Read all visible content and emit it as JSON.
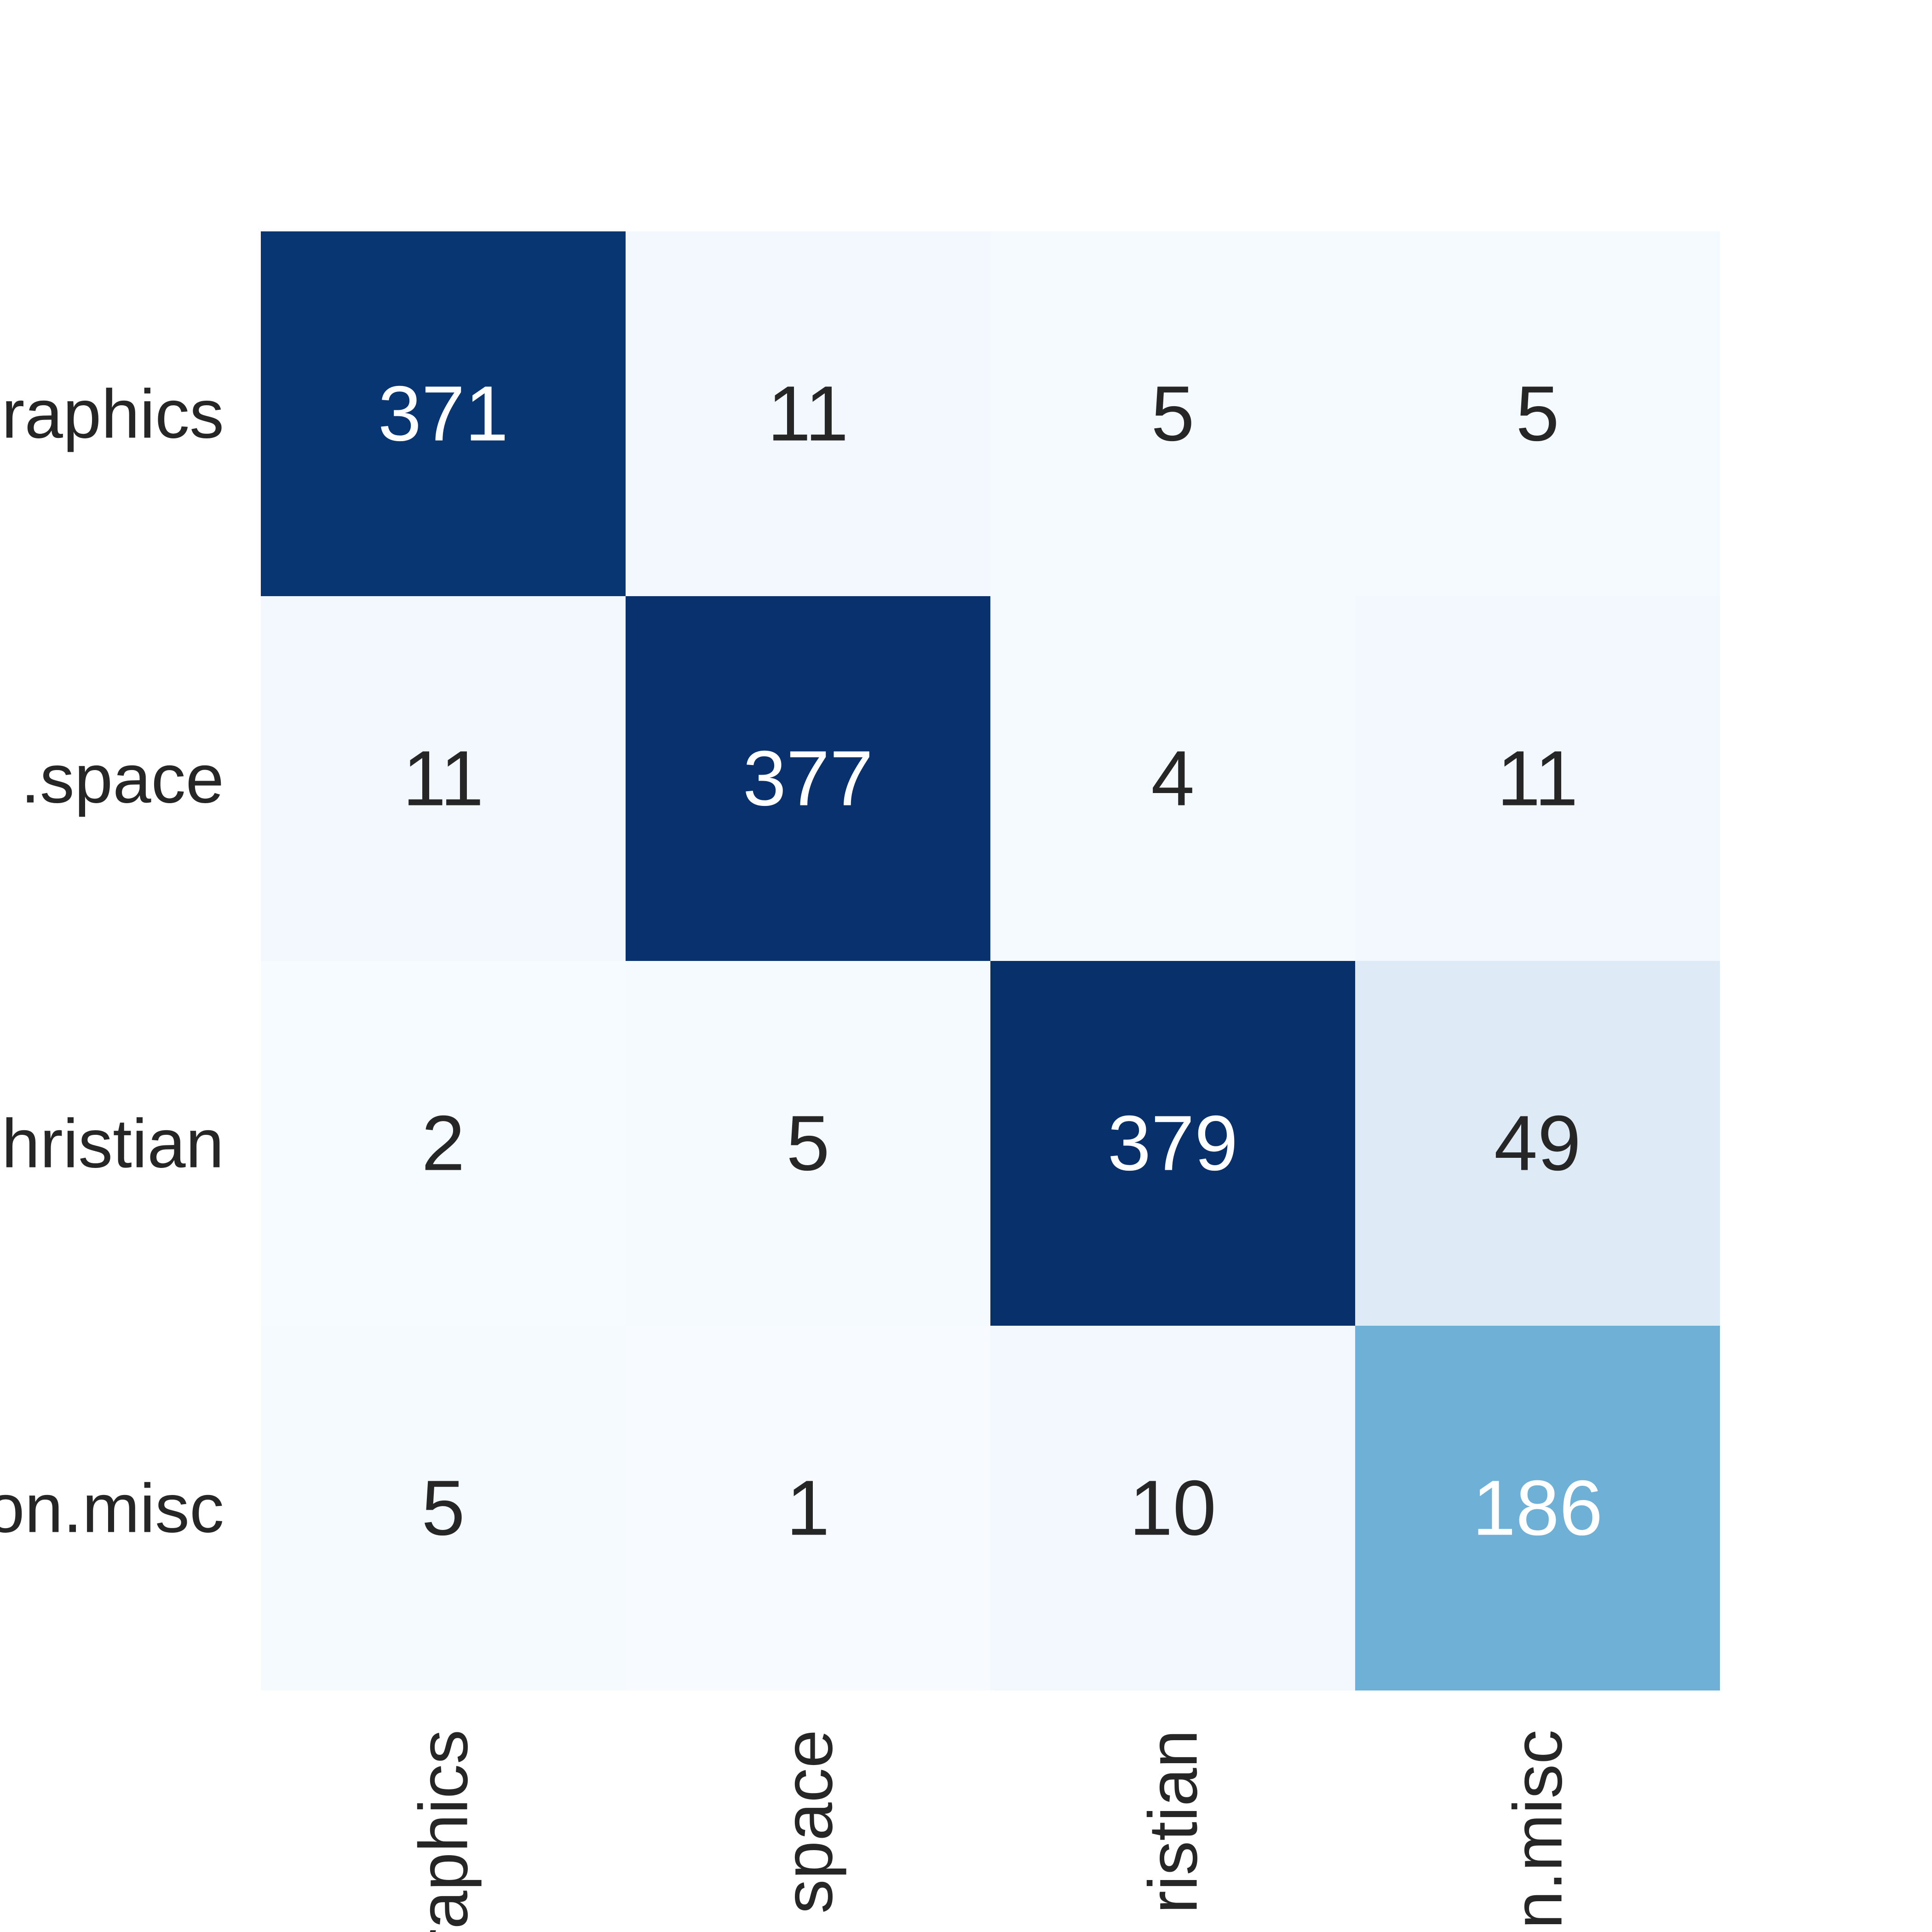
{
  "chart_data": {
    "type": "heatmap",
    "title": "",
    "xlabel": "",
    "ylabel": "",
    "x_labels": [
      "raphics",
      "space",
      "ristian",
      "n.misc"
    ],
    "y_labels": [
      "raphics",
      ".space",
      "hristian",
      "on.misc"
    ],
    "matrix": [
      [
        371,
        11,
        5,
        5
      ],
      [
        11,
        377,
        4,
        11
      ],
      [
        2,
        5,
        379,
        49
      ],
      [
        5,
        1,
        10,
        186
      ]
    ],
    "colormap": "Blues",
    "value_range": [
      1,
      379
    ],
    "colorbar": false,
    "grid": false,
    "colors": {
      "low": "#f7fbff",
      "high": "#08306b",
      "dark_text": "#262626",
      "light_text": "#ffffff"
    }
  }
}
